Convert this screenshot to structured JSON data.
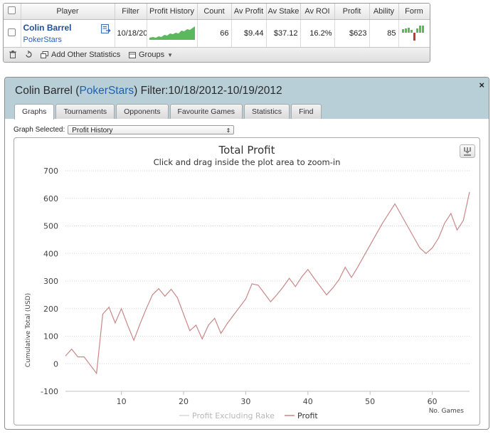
{
  "table": {
    "headers": [
      "Player",
      "Filter",
      "Profit History",
      "Count",
      "Av Profit",
      "Av Stake",
      "Av ROI",
      "Profit",
      "Ability",
      "Form"
    ],
    "row": {
      "name": "Colin Barrel",
      "site": "PokerStars",
      "filter": "10/18/20",
      "count": "66",
      "av_profit": "$9.44",
      "av_stake": "$37.12",
      "av_roi": "16.2%",
      "profit": "$623",
      "ability": "85"
    }
  },
  "toolbar": {
    "delete_icon": "trash-icon",
    "refresh_icon": "refresh-icon",
    "add_stats_label": "Add Other Statistics",
    "groups_label": "Groups"
  },
  "dialog": {
    "player_name": "Colin Barrel",
    "open_paren": " (",
    "site": "PokerStars",
    "close_paren": ")",
    "filter_text": " Filter:10/18/2012-10/19/2012",
    "close_icon": "×",
    "tabs": [
      "Graphs",
      "Tournaments",
      "Opponents",
      "Favourite Games",
      "Statistics",
      "Find"
    ],
    "active_tab": 0,
    "graph_selected_label": "Graph Selected:",
    "graph_selected_value": "Profit History"
  },
  "colors": {
    "header_bg": "#b9cfd8",
    "link_blue": "#1d5fb0",
    "profit_line": "#c98888",
    "rake_line": "#d7d7d7",
    "sparkline_green": "#5cb85c",
    "form_red": "#c0392b"
  },
  "chart_data": {
    "type": "line",
    "title": "Total Profit",
    "subtitle": "Click and drag inside the plot area to zoom-in",
    "xlabel": "No. Games",
    "ylabel": "Cumulative Total (USD)",
    "ylim": [
      -100,
      700
    ],
    "xlim": [
      1,
      66
    ],
    "yticks": [
      -100,
      0,
      100,
      200,
      300,
      400,
      500,
      600,
      700
    ],
    "xticks": [
      10,
      20,
      30,
      40,
      50,
      60
    ],
    "grid": true,
    "legend_position": "bottom-center",
    "series": [
      {
        "name": "Profit Excluding Rake",
        "values": []
      },
      {
        "name": "Profit",
        "x": [
          1,
          2,
          3,
          4,
          5,
          6,
          7,
          8,
          9,
          10,
          11,
          12,
          13,
          14,
          15,
          16,
          17,
          18,
          19,
          20,
          21,
          22,
          23,
          24,
          25,
          26,
          27,
          28,
          29,
          30,
          31,
          32,
          33,
          34,
          35,
          36,
          37,
          38,
          39,
          40,
          41,
          42,
          43,
          44,
          45,
          46,
          47,
          48,
          49,
          50,
          51,
          52,
          53,
          54,
          55,
          56,
          57,
          58,
          59,
          60,
          61,
          62,
          63,
          64,
          65,
          66
        ],
        "values": [
          28,
          53,
          25,
          25,
          -5,
          -35,
          180,
          205,
          148,
          200,
          140,
          85,
          145,
          200,
          250,
          272,
          245,
          270,
          240,
          180,
          120,
          140,
          90,
          140,
          165,
          110,
          145,
          175,
          205,
          235,
          290,
          285,
          255,
          225,
          250,
          278,
          310,
          280,
          315,
          342,
          310,
          280,
          250,
          275,
          305,
          350,
          313,
          350,
          390,
          430,
          470,
          510,
          545,
          580,
          540,
          500,
          460,
          420,
          400,
          420,
          455,
          510,
          545,
          485,
          520,
          623
        ]
      }
    ]
  }
}
